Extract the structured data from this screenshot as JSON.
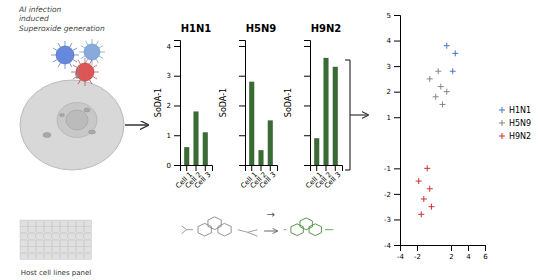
{
  "chart_data": [
    {
      "type": "bar",
      "title": "H1N1",
      "categories": [
        "Cell 1",
        "Cell 2",
        "Cell 3"
      ],
      "values": [
        0.6,
        1.8,
        1.1
      ],
      "color": "#3a6b35",
      "ylabel": "SoDA-1",
      "ylim": [
        0,
        4.2
      ],
      "yticks": [
        0,
        1,
        2,
        3,
        4
      ],
      "annotations": [
        "AI infection\ninduced\nSuperoxide generation",
        "Host cell lines panel",
        "→"
      ]
    },
    {
      "type": "bar",
      "title": "H5N9",
      "categories": [
        "Cell 1",
        "Cell 2",
        "Cell 3"
      ],
      "values": [
        2.8,
        0.5,
        1.5
      ],
      "color": "#3a6b35",
      "ylabel": "SoDA-1",
      "ylim": [
        0,
        4.2
      ],
      "yticks": [
        0,
        1,
        2,
        3,
        4
      ],
      "tick_labels": "x"
    },
    {
      "type": "bar",
      "title": "H9N2",
      "categories": [
        "Cell 1",
        "Cell 2",
        "Cell 3"
      ],
      "values": [
        0.9,
        3.6,
        3.3
      ],
      "color": "#3a6b35",
      "ylabel": "SoDA-1",
      "ylim": [
        0,
        4.2
      ],
      "yticks": [
        0,
        1,
        2,
        3,
        4
      ],
      "tick_labels": "x"
    },
    {
      "type": "scatter",
      "series": [
        {
          "name": "H1N1",
          "color": "#4477cc",
          "marker": "+",
          "x": [
            1.5,
            2.5,
            2.2
          ],
          "values": [
            3.8,
            3.5,
            2.8
          ]
        },
        {
          "name": "H5N9",
          "color": "#888888",
          "marker": "+",
          "x": [
            -0.5,
            0.5,
            0.8,
            1.5,
            0.2,
            1.0
          ],
          "values": [
            2.5,
            2.8,
            2.2,
            2.0,
            1.8,
            1.5
          ]
        },
        {
          "name": "H9N2",
          "color": "#cc3333",
          "marker": "+",
          "x": [
            -1.8,
            -0.5,
            -1.2,
            -0.8,
            -1.5,
            -0.3
          ],
          "values": [
            -1.5,
            -1.8,
            -2.2,
            -1.0,
            -2.8,
            -2.5
          ]
        }
      ],
      "xlim": [
        -4,
        6
      ],
      "ylim": [
        -4,
        5
      ],
      "xticks": [
        -4,
        -2,
        2,
        4,
        6
      ],
      "yticks": [
        -4,
        -3,
        -2,
        -1,
        1,
        2,
        3,
        4,
        5
      ],
      "legend": "right"
    }
  ]
}
